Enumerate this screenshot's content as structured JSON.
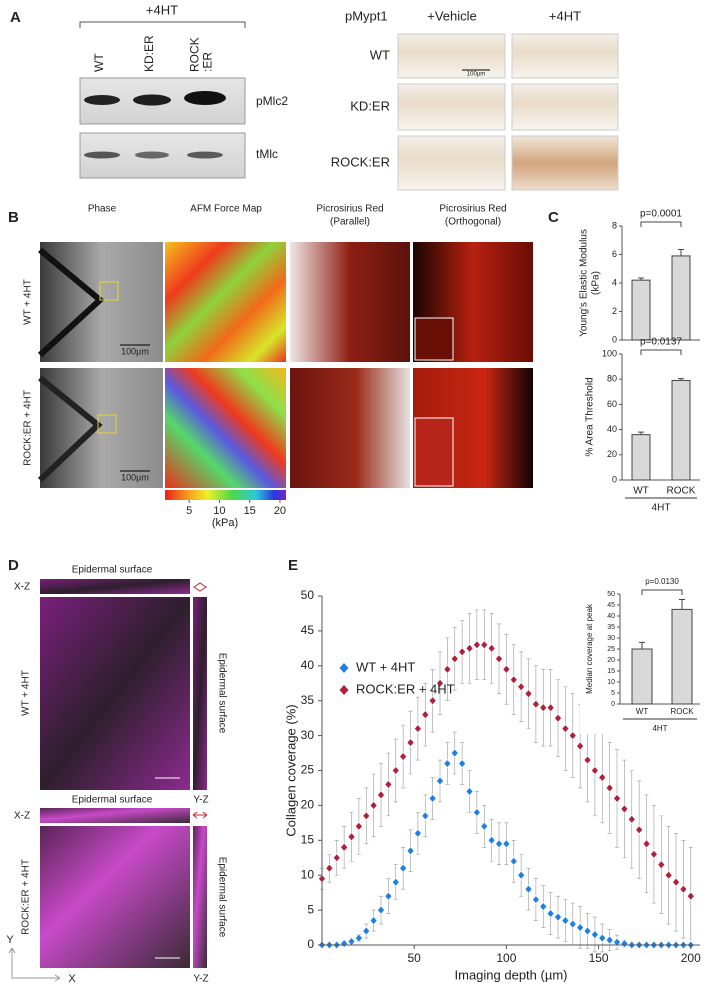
{
  "panel_a": {
    "letter": "A",
    "treatment": "+4HT",
    "lanes": [
      [
        "WT"
      ],
      [
        "KD:ER"
      ],
      [
        "ROCK",
        ":ER"
      ]
    ],
    "blots": [
      "pMlc2",
      "tMlc"
    ],
    "ihc": {
      "stain": "pMypt1",
      "columns": [
        "+Vehicle",
        "+4HT"
      ],
      "rows": [
        "WT",
        "KD:ER",
        "ROCK:ER"
      ],
      "scale_bar": "100µm"
    }
  },
  "panel_b": {
    "letter": "B",
    "columns": [
      [
        "Phase"
      ],
      [
        "AFM Force Map"
      ],
      [
        "Picrosirius Red",
        "(Parallel)"
      ],
      [
        "Picrosirius Red",
        "(Orthogonal)"
      ]
    ],
    "rows": [
      "WT + 4HT",
      "ROCK:ER + 4HT"
    ],
    "scale_bars": [
      "100µm",
      "100µm"
    ],
    "colorbar": {
      "range": [
        1,
        21
      ],
      "ticks": [
        5,
        10,
        15,
        20
      ],
      "label": "(kPa)"
    }
  },
  "panel_c": {
    "letter": "C",
    "categories": [
      "WT",
      "ROCK"
    ],
    "group": "4HT",
    "color": "#d9d9d9",
    "charts": [
      {
        "type": "bar",
        "ylabel": [
          "Young's Elastic Modulus",
          "(kPa)"
        ],
        "values": [
          4.2,
          5.9
        ],
        "errors": [
          0.15,
          0.45
        ],
        "ylim": [
          0,
          8
        ],
        "yticks": [
          0,
          2,
          4,
          6,
          8
        ],
        "annotation": "p=0.0001"
      },
      {
        "type": "bar",
        "ylabel": [
          "% Area Threshold"
        ],
        "values": [
          36,
          79
        ],
        "errors": [
          2,
          1.5
        ],
        "ylim": [
          0,
          100
        ],
        "yticks": [
          0,
          20,
          40,
          60,
          80,
          100
        ],
        "annotation": "p=0.0137"
      }
    ]
  },
  "panel_d": {
    "letter": "D",
    "rows": [
      {
        "label": "WT + 4HT",
        "top": "Epidermal surface",
        "side": "Epidermal surface",
        "xz": "X-Z",
        "yz": "Y-Z"
      },
      {
        "label": "ROCK:ER + 4HT",
        "top": "Epidermal surface",
        "side": "Epidermal surface",
        "xz": "X-Z",
        "yz": "Y-Z"
      }
    ],
    "axes": [
      "Y",
      "X"
    ]
  },
  "panel_e": {
    "letter": "E",
    "chart": {
      "type": "line",
      "xlabel": "Imaging depth (µm)",
      "ylabel": "Collagen coverage (%)",
      "x": [
        0,
        4,
        8,
        12,
        16,
        20,
        24,
        28,
        32,
        36,
        40,
        44,
        48,
        52,
        56,
        60,
        64,
        68,
        72,
        76,
        80,
        84,
        88,
        92,
        96,
        100,
        104,
        108,
        112,
        116,
        120,
        124,
        128,
        132,
        136,
        140,
        144,
        148,
        152,
        156,
        160,
        164,
        168,
        172,
        176,
        180,
        184,
        188,
        192,
        196,
        200
      ],
      "xlim": [
        0,
        205
      ],
      "xticks": [
        50,
        100,
        150,
        200
      ],
      "ylim": [
        0,
        50
      ],
      "yticks": [
        0,
        5,
        10,
        15,
        20,
        25,
        30,
        35,
        40,
        45,
        50
      ],
      "series": [
        {
          "name": "WT + 4HT",
          "color": "#1e80e6",
          "marker": "diamond",
          "values": [
            0,
            0,
            0,
            0.2,
            0.5,
            1,
            2,
            3.5,
            5,
            7,
            9,
            11,
            13.5,
            16,
            18.5,
            21,
            23.5,
            26,
            27.5,
            26,
            22,
            19,
            17,
            15,
            14.5,
            14.5,
            12,
            10,
            8,
            6.5,
            5.5,
            4.5,
            4,
            3.5,
            3,
            2.5,
            2,
            1.5,
            1,
            0.7,
            0.4,
            0.2,
            0,
            0,
            0,
            0,
            0,
            0,
            0,
            0,
            0
          ],
          "errors": [
            0,
            0,
            0,
            0.1,
            0.3,
            0.5,
            1,
            1.5,
            2,
            2.5,
            2.5,
            3,
            3,
            3,
            3,
            3,
            3,
            3,
            3,
            3,
            3,
            3,
            3,
            3,
            3,
            3,
            3,
            3,
            3,
            3,
            3,
            3,
            3,
            3,
            3,
            3,
            2.5,
            2.5,
            2,
            1.5,
            1,
            0.5,
            0,
            0,
            0,
            0,
            0,
            0,
            0,
            0,
            0
          ]
        },
        {
          "name": "ROCK:ER + 4HT",
          "color": "#b0203a",
          "marker": "diamond",
          "values": [
            9.5,
            11,
            12.5,
            14,
            15.5,
            17,
            18.5,
            20,
            21.5,
            23,
            25,
            27,
            29,
            31,
            33,
            35,
            37.5,
            39.5,
            41,
            42,
            42.5,
            43,
            43,
            42.5,
            41,
            39.5,
            38,
            37,
            36,
            34.5,
            34,
            34,
            32.5,
            31,
            30,
            28.5,
            26.5,
            25,
            24,
            22.5,
            21,
            19.5,
            18,
            16.5,
            14.5,
            13,
            11.5,
            10,
            9,
            8,
            7
          ],
          "errors": [
            1.5,
            2,
            2.5,
            3,
            3.5,
            4,
            4,
            4.5,
            4.5,
            4.5,
            4.5,
            4.5,
            4.5,
            4.5,
            4.5,
            4.5,
            4.5,
            4.5,
            4.5,
            4.5,
            5,
            5,
            5,
            5,
            5,
            5,
            5,
            5,
            5,
            5.5,
            5.5,
            5.5,
            5.5,
            6,
            6,
            6,
            6,
            6.5,
            6.5,
            6.5,
            7,
            7,
            7,
            7,
            7,
            7,
            7,
            7,
            7,
            7,
            7
          ]
        }
      ]
    },
    "inset": {
      "type": "bar",
      "ylabel": "Median coverage at peak",
      "categories": [
        "WT",
        "ROCK"
      ],
      "group": "4HT",
      "color": "#d9d9d9",
      "values": [
        25,
        43
      ],
      "errors": [
        3,
        4.5
      ],
      "ylim": [
        0,
        50
      ],
      "yticks": [
        0,
        5,
        10,
        15,
        20,
        25,
        30,
        35,
        40,
        45,
        50
      ],
      "annotation": "p=0.0130"
    }
  }
}
